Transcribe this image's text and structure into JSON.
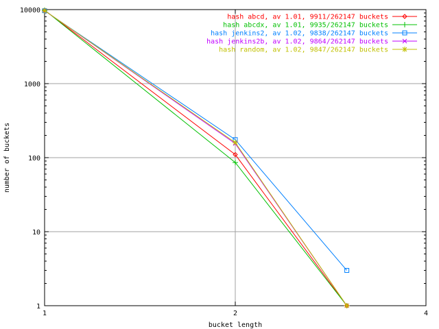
{
  "chart_data": {
    "type": "line",
    "title": "",
    "xlabel": "bucket length",
    "ylabel": "number of buckets",
    "x_scale": "log2",
    "y_scale": "log10",
    "xlim": [
      1,
      4
    ],
    "ylim": [
      1,
      10000
    ],
    "x_ticks": [
      "1",
      "2",
      "4"
    ],
    "y_ticks": [
      "1",
      "10",
      "100",
      "1000",
      "10000"
    ],
    "grid": true,
    "legend_position": "top-right",
    "series": [
      {
        "name": "hash abcd, av 1.01, 9911/262147 buckets",
        "color": "#ff0000",
        "marker": "diamond",
        "x": [
          1,
          2,
          3
        ],
        "y": [
          9800,
          110,
          1
        ]
      },
      {
        "name": "hash abcdx, av 1.01, 9935/262147 buckets",
        "color": "#00c000",
        "marker": "plus",
        "x": [
          1,
          2,
          3
        ],
        "y": [
          9850,
          86,
          1
        ]
      },
      {
        "name": "hash jenkins2, av 1.02, 9838/262147 buckets",
        "color": "#0080ff",
        "marker": "square",
        "x": [
          1,
          2,
          3
        ],
        "y": [
          9650,
          175,
          3
        ]
      },
      {
        "name": "hash jenkins2b, av 1.02, 9864/262147 buckets",
        "color": "#c000ff",
        "marker": "cross",
        "x": [
          1,
          2,
          3
        ],
        "y": [
          9700,
          155,
          1
        ]
      },
      {
        "name": "hash random, av 1.02, 9847/262147 buckets",
        "color": "#c0c000",
        "marker": "asterisk",
        "x": [
          1,
          2,
          3
        ],
        "y": [
          9700,
          160,
          1
        ]
      }
    ]
  }
}
